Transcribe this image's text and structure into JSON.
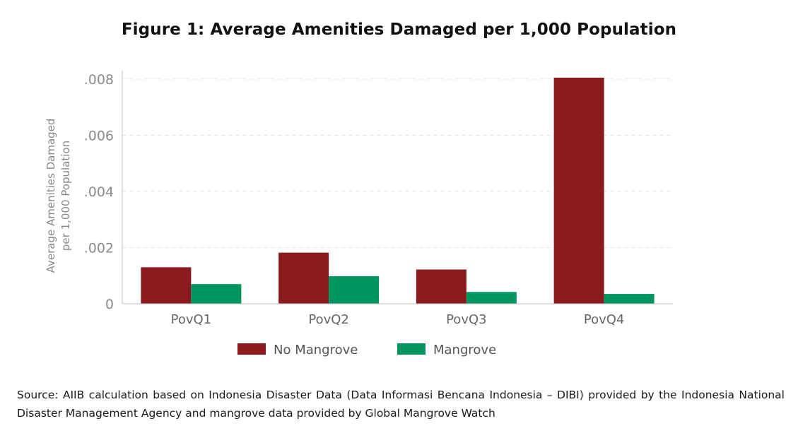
{
  "chart_data": {
    "type": "bar",
    "title": "Figure 1: Average Amenities Damaged per 1,000 Population",
    "ylabel_line1": "Average Amenities Damaged",
    "ylabel_line2": "per 1,000 Population",
    "xlabel": "",
    "categories": [
      "PovQ1",
      "PovQ2",
      "PovQ3",
      "PovQ4"
    ],
    "series": [
      {
        "name": "No Mangrove",
        "color": "#8b1a1f",
        "values": [
          0.0013,
          0.00182,
          0.00122,
          0.00805
        ]
      },
      {
        "name": "Mangrove",
        "color": "#00965e",
        "values": [
          0.0007,
          0.00098,
          0.00042,
          0.00035
        ]
      }
    ],
    "ylim": [
      0,
      0.0083
    ],
    "yticks": [
      0,
      0.002,
      0.004,
      0.006,
      0.008
    ],
    "ytick_labels": [
      "0",
      ".002",
      ".004",
      ".006",
      ".008"
    ],
    "grid": true,
    "legend_position": "bottom-center"
  },
  "source_note": "Source: AIIB calculation based on Indonesia Disaster Data (Data Informasi Bencana Indonesia – DIBI) provided by the Indonesia National Disaster Management Agency and mangrove data provided by Global Mangrove Watch"
}
